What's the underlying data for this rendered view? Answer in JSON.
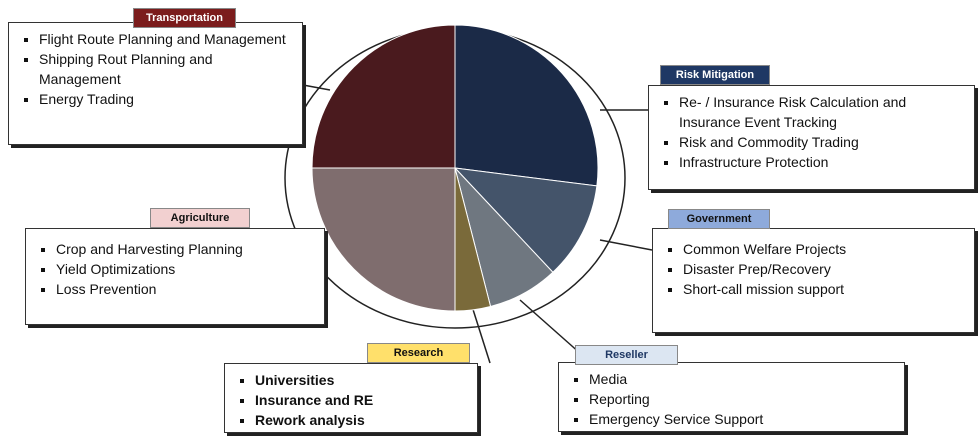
{
  "chart_data": {
    "type": "pie",
    "categories": [
      "Risk Mitigation",
      "Government",
      "Reseller",
      "Research",
      "Agriculture",
      "Transportation"
    ],
    "values": [
      27,
      11,
      8,
      4,
      25,
      25
    ],
    "colors": [
      "#1b2a47",
      "#44546a",
      "#6f7780",
      "#7a6a3a",
      "#7f6d6e",
      "#4a1a1e"
    ],
    "details": [
      [
        "Re- / Insurance Risk Calculation and Insurance Event Tracking",
        "Risk and Commodity Trading",
        "Infrastructure Protection"
      ],
      [
        "Common Welfare Projects",
        "Disaster Prep/Recovery",
        "Short-call mission support"
      ],
      [
        "Media",
        "Reporting",
        "Emergency Service Support"
      ],
      [
        "Universities",
        "Insurance and RE",
        "Rework analysis"
      ],
      [
        "Crop and Harvesting Planning",
        "Yield Optimizations",
        "Loss Prevention"
      ],
      [
        "Flight Route Planning and Management",
        "Shipping Rout Planning and Management",
        "Energy Trading"
      ]
    ]
  }
}
